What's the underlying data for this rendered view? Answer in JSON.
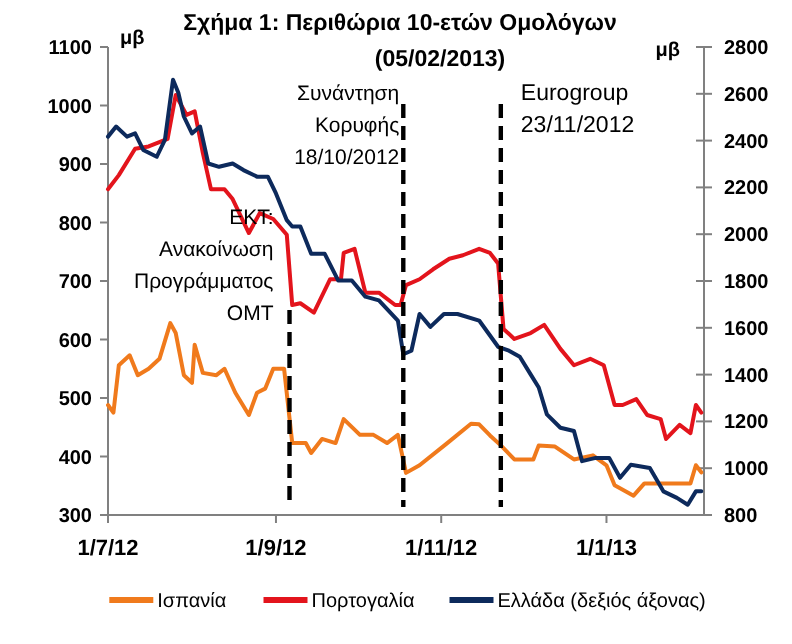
{
  "chart_data": {
    "type": "line",
    "title": "Σχήμα 1: Περιθώρια 10-ετών Ομολόγων",
    "subtitle": "(05/02/2013)",
    "ylabel": "μβ",
    "y2label": "μβ",
    "xlim": [
      "2012-07-01",
      "2013-02-06"
    ],
    "xticks": [
      {
        "value": "2012-07-01",
        "label": "1/7/12"
      },
      {
        "value": "2012-09-01",
        "label": "1/9/12"
      },
      {
        "value": "2012-11-01",
        "label": "1/11/12"
      },
      {
        "value": "2013-01-01",
        "label": "1/1/13"
      }
    ],
    "ylim": [
      300,
      1100
    ],
    "yticks": [
      300,
      400,
      500,
      600,
      700,
      800,
      900,
      1000,
      1100
    ],
    "y2lim": [
      800,
      2800
    ],
    "y2ticks": [
      800,
      1000,
      1200,
      1400,
      1600,
      1800,
      2000,
      2200,
      2400,
      2600,
      2800
    ],
    "grid": false,
    "legend": "bottom",
    "marker": "none",
    "line_style": "solid",
    "series": [
      {
        "name": "Ισπανία",
        "color": "#f07a1c",
        "x": [
          "2012-07-01",
          "2012-07-03",
          "2012-07-05",
          "2012-07-09",
          "2012-07-12",
          "2012-07-16",
          "2012-07-20",
          "2012-07-24",
          "2012-07-26",
          "2012-07-29",
          "2012-08-01",
          "2012-08-02",
          "2012-08-05",
          "2012-08-10",
          "2012-08-13",
          "2012-08-17",
          "2012-08-22",
          "2012-08-25",
          "2012-08-28",
          "2012-08-31",
          "2012-09-04",
          "2012-09-07",
          "2012-09-12",
          "2012-09-14",
          "2012-09-18",
          "2012-09-23",
          "2012-09-26",
          "2012-10-02",
          "2012-10-07",
          "2012-10-12",
          "2012-10-16",
          "2012-10-19",
          "2012-10-24",
          "2012-11-03",
          "2012-11-12",
          "2012-11-15",
          "2012-11-19",
          "2012-11-23",
          "2012-11-28",
          "2012-12-05",
          "2012-12-07",
          "2012-12-13",
          "2012-12-20",
          "2012-12-27",
          "2013-01-01",
          "2013-01-04",
          "2013-01-11",
          "2013-01-15",
          "2013-01-23",
          "2013-02-01",
          "2013-02-03",
          "2013-02-05"
        ],
        "values": [
          488,
          475,
          556,
          573,
          539,
          550,
          567,
          628,
          611,
          539,
          526,
          591,
          543,
          539,
          550,
          509,
          471,
          509,
          516,
          550,
          550,
          423,
          423,
          406,
          430,
          423,
          464,
          437,
          437,
          423,
          437,
          372,
          385,
          422,
          456,
          455,
          436,
          419,
          395,
          395,
          419,
          417,
          395,
          402,
          385,
          351,
          333,
          354,
          354,
          354,
          385,
          373
        ]
      },
      {
        "name": "Πορτογαλία",
        "color": "#e3141c",
        "x": [
          "2012-07-01",
          "2012-07-05",
          "2012-07-11",
          "2012-07-16",
          "2012-07-23",
          "2012-07-26",
          "2012-07-30",
          "2012-08-02",
          "2012-08-05",
          "2012-08-08",
          "2012-08-13",
          "2012-08-16",
          "2012-08-22",
          "2012-08-26",
          "2012-08-31",
          "2012-09-05",
          "2012-09-07",
          "2012-09-10",
          "2012-09-15",
          "2012-09-21",
          "2012-09-25",
          "2012-09-26",
          "2012-09-30",
          "2012-10-04",
          "2012-10-09",
          "2012-10-15",
          "2012-10-17",
          "2012-10-19",
          "2012-10-24",
          "2012-10-29",
          "2012-11-04",
          "2012-11-09",
          "2012-11-15",
          "2012-11-19",
          "2012-11-22",
          "2012-11-24",
          "2012-11-28",
          "2012-12-04",
          "2012-12-09",
          "2012-12-15",
          "2012-12-20",
          "2012-12-26",
          "2012-12-31",
          "2013-01-04",
          "2013-01-07",
          "2013-01-12",
          "2013-01-16",
          "2013-01-21",
          "2013-01-23",
          "2013-01-28",
          "2013-02-01",
          "2013-02-03",
          "2013-02-05"
        ],
        "values": [
          857,
          881,
          926,
          930,
          943,
          1018,
          984,
          990,
          919,
          857,
          857,
          840,
          782,
          816,
          806,
          779,
          659,
          662,
          646,
          703,
          703,
          748,
          755,
          680,
          680,
          659,
          659,
          693,
          703,
          720,
          738,
          744,
          755,
          748,
          730,
          618,
          601,
          611,
          625,
          584,
          556,
          567,
          556,
          488,
          488,
          498,
          471,
          464,
          430,
          454,
          440,
          488,
          475
        ]
      },
      {
        "name": "Ελλάδα (δεξιός άξονας)",
        "color": "#0d2a5c",
        "axis": "y2",
        "x": [
          "2012-07-01",
          "2012-07-04",
          "2012-07-08",
          "2012-07-11",
          "2012-07-14",
          "2012-07-19",
          "2012-07-22",
          "2012-07-25",
          "2012-07-27",
          "2012-07-29",
          "2012-08-01",
          "2012-08-04",
          "2012-08-07",
          "2012-08-11",
          "2012-08-16",
          "2012-08-20",
          "2012-08-25",
          "2012-08-29",
          "2012-09-01",
          "2012-09-05",
          "2012-09-07",
          "2012-09-10",
          "2012-09-14",
          "2012-09-19",
          "2012-09-24",
          "2012-09-29",
          "2012-10-04",
          "2012-10-09",
          "2012-10-16",
          "2012-10-18",
          "2012-10-21",
          "2012-10-24",
          "2012-10-28",
          "2012-11-02",
          "2012-11-07",
          "2012-11-15",
          "2012-11-22",
          "2012-11-26",
          "2012-11-30",
          "2012-12-04",
          "2012-12-07",
          "2012-12-10",
          "2012-12-15",
          "2012-12-20",
          "2012-12-23",
          "2012-12-28",
          "2013-01-02",
          "2013-01-06",
          "2013-01-10",
          "2013-01-17",
          "2013-01-22",
          "2013-01-27",
          "2013-01-31",
          "2013-02-03",
          "2013-02-05"
        ],
        "values": [
          2417,
          2460,
          2417,
          2431,
          2360,
          2331,
          2403,
          2660,
          2603,
          2503,
          2431,
          2460,
          2302,
          2288,
          2302,
          2274,
          2246,
          2246,
          2174,
          2060,
          2033,
          2033,
          1916,
          1916,
          1802,
          1802,
          1733,
          1717,
          1631,
          1487,
          1502,
          1659,
          1604,
          1659,
          1659,
          1631,
          1519,
          1502,
          1476,
          1401,
          1345,
          1230,
          1173,
          1159,
          1030,
          1044,
          1044,
          959,
          1015,
          1001,
          901,
          873,
          844,
          901,
          901
        ]
      }
    ],
    "ref_lines": [
      {
        "axis": "x",
        "value": "2012-09-06",
        "label": "ΕΚΤ:\nΑνακοίνωση\nΠρογράμματος\nOMT",
        "color": "#000000",
        "line_style": "dashed"
      },
      {
        "axis": "x",
        "value": "2012-10-18",
        "label": "Συνάντηση\nΚορυφής\n18/10/2012",
        "color": "#000000",
        "line_style": "dashed"
      },
      {
        "axis": "x",
        "value": "2012-11-23",
        "label": "Eurogroup\n23/11/2012",
        "color": "#000000",
        "line_style": "dashed"
      }
    ]
  }
}
